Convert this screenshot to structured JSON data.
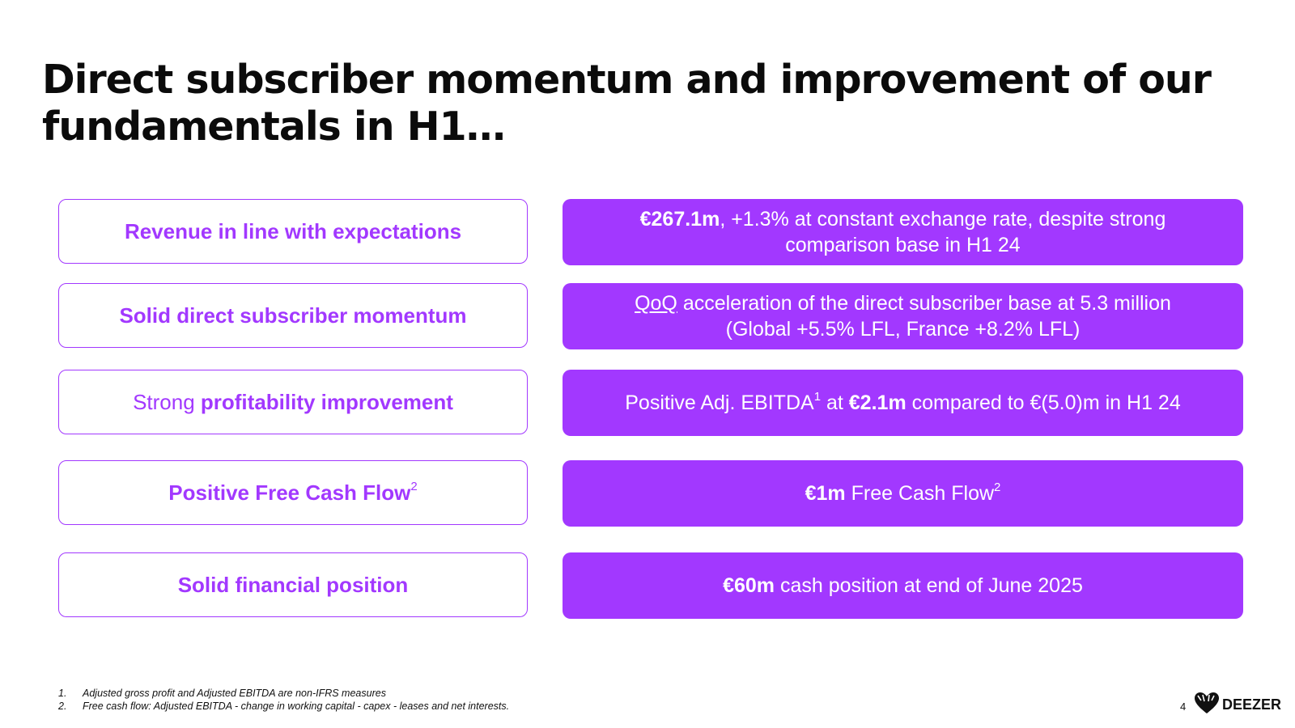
{
  "title": {
    "line1": "Direct subscriber momentum and improvement of our",
    "line2": "fundamentals in H1…"
  },
  "rows": [
    {
      "left": {
        "bold": "Revenue in line with expectations"
      },
      "right": {
        "bold": "€267.1m",
        "line1_rest": ", +1.3% at constant exchange rate, despite strong",
        "line2": "comparison base in H1 24"
      }
    },
    {
      "left": {
        "bold": "Solid direct subscriber momentum"
      },
      "right": {
        "underline": "QoQ",
        "line1_rest": " acceleration of the direct subscriber base at 5.3 million",
        "line2": "(Global +5.5% LFL, France +8.2% LFL)"
      }
    },
    {
      "left": {
        "normal": "Strong ",
        "bold": "profitability improvement"
      },
      "right": {
        "pre": "Positive Adj. EBITDA",
        "sup": "1",
        "mid": " at ",
        "bold": "€2.1m",
        "post": " compared to €(5.0)m in H1 24"
      }
    },
    {
      "left": {
        "bold": "Positive Free Cash Flow",
        "sup": "2"
      },
      "right": {
        "bold": "€1m",
        "post": " Free Cash Flow",
        "sup": "2"
      }
    },
    {
      "left": {
        "bold": "Solid financial position"
      },
      "right": {
        "bold": "€60m",
        "post": " cash position at end of June 2025"
      }
    }
  ],
  "footnotes": [
    {
      "num": "1.",
      "text": "Adjusted gross profit and Adjusted EBITDA are non-IFRS measures"
    },
    {
      "num": "2.",
      "text": "Free cash flow: Adjusted EBITDA - change in working capital - capex - leases and net interests."
    }
  ],
  "page_number": "4",
  "logo": {
    "text": "DEEZER",
    "icon": "deezer-heart-icon"
  },
  "colors": {
    "accent": "#a238ff",
    "title": "#0b0b0b"
  }
}
